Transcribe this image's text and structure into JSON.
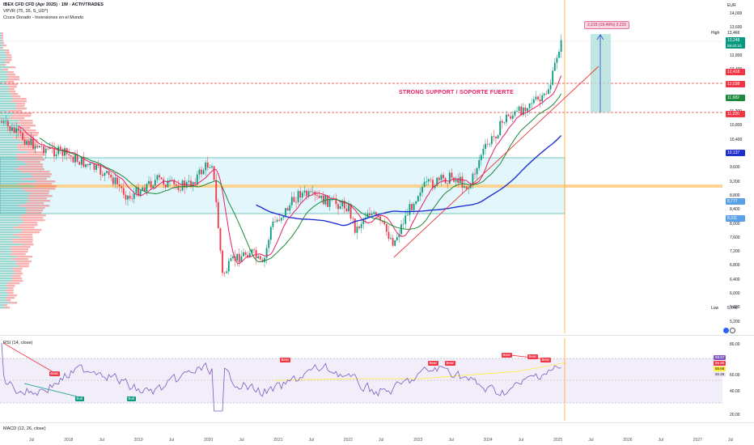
{
  "legend": {
    "symbol": "IBEX CFD CFD (Apr 2025) · 1W · ACTIVTRADES",
    "vpvr": "VPVR (75, 35, S_UD*)",
    "study": "Cruce Dorado - Inversiones en el Mundo"
  },
  "currency": "EUR",
  "price_ticks": [
    "14,000",
    "13,600",
    "13,200",
    "12,800",
    "12,400",
    "12,000",
    "11,600",
    "11,200",
    "10,800",
    "10,400",
    "10,000",
    "9,600",
    "9,200",
    "8,800",
    "8,400",
    "8,000",
    "7,600",
    "7,200",
    "6,800",
    "6,400",
    "6,000",
    "5,600",
    "5,200"
  ],
  "high_label": "High",
  "high_value": "13,466",
  "low_label": "Low",
  "low_value": "5,746",
  "price_tags": [
    {
      "value": "13,248",
      "sub": "59:42:10",
      "color": "#089981"
    },
    {
      "value": "12,418",
      "color": "#f23645"
    },
    {
      "value": "12,038",
      "color": "#f23645"
    },
    {
      "value": "11,682",
      "color": "#1b8a3a"
    },
    {
      "value": "11,220",
      "color": "#f23645"
    },
    {
      "value": "10,137",
      "color": "#2030d0"
    },
    {
      "value": "8,777",
      "color": "#5aa0e6"
    },
    {
      "value": "8,311",
      "color": "#5aa0e6"
    }
  ],
  "annotation": "STRONG SUPPORT / SOPORTE FUERTE",
  "measure": "2,215 (19.49%) 2,215",
  "rsi": {
    "title": "RSI (14, close)",
    "ticks": [
      "80.00",
      "60.00",
      "40.00",
      "20.00"
    ],
    "tags": [
      {
        "value": "69.67",
        "bg": "#7e57c2",
        "fg": "#ffffff"
      },
      {
        "value": "65.80",
        "bg": "#f23645",
        "fg": "#ffffff"
      },
      {
        "value": "55.66",
        "bg": "#ffeb3b",
        "fg": "#131722"
      },
      {
        "value": "50.29",
        "bg": "#ede7f6",
        "fg": "#131722"
      }
    ],
    "bear_label": "Bear",
    "bull_label": "Bull"
  },
  "macd": {
    "title": "MACD (12, 26, close)"
  },
  "time_labels": [
    "Jul",
    "2018",
    "Jul",
    "2019",
    "Jul",
    "2020",
    "Jul",
    "2021",
    "Jul",
    "2022",
    "Jul",
    "2023",
    "Jul",
    "2024",
    "Jul",
    "2025",
    "Jul",
    "2026",
    "Jul",
    "2027",
    "Jul"
  ],
  "colors": {
    "up": "#089981",
    "down": "#f23645",
    "ma_short": "#e91e63",
    "ma_mid": "#1b8a3a",
    "ma_long": "#2030d0",
    "support_zone": "#e3f6fb",
    "support_line": "#ffb74d",
    "rsi_line": "#7e57c2"
  }
}
